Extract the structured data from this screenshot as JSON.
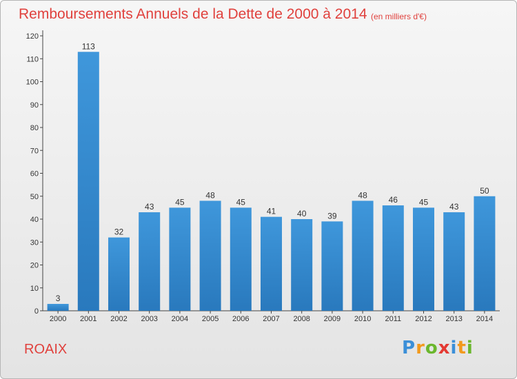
{
  "chart_data": {
    "type": "bar",
    "title": "Remboursements Annuels de la Dette de 2000 à 2014",
    "subtitle": "(en milliers d'€)",
    "categories": [
      "2000",
      "2001",
      "2002",
      "2003",
      "2004",
      "2005",
      "2006",
      "2007",
      "2008",
      "2009",
      "2010",
      "2011",
      "2012",
      "2013",
      "2014"
    ],
    "values": [
      3,
      113,
      32,
      43,
      45,
      48,
      45,
      41,
      40,
      39,
      48,
      46,
      45,
      43,
      50
    ],
    "ylim": [
      0,
      120
    ],
    "yticks": [
      0,
      10,
      20,
      30,
      40,
      50,
      60,
      70,
      80,
      90,
      100,
      110,
      120
    ],
    "grid": false,
    "bar_color": "#3f97db",
    "bar_color_dark": "#2979bd"
  },
  "footer": {
    "commune": "ROAIX",
    "logo_letters": [
      {
        "ch": "P",
        "color": "#3b8fd8"
      },
      {
        "ch": "r",
        "color": "#f29a1d"
      },
      {
        "ch": "o",
        "color": "#6bb72d"
      },
      {
        "ch": "x",
        "color": "#e43a33"
      },
      {
        "ch": "i",
        "color": "#3b8fd8"
      },
      {
        "ch": "t",
        "color": "#f29a1d"
      },
      {
        "ch": "i",
        "color": "#6bb72d"
      }
    ]
  }
}
